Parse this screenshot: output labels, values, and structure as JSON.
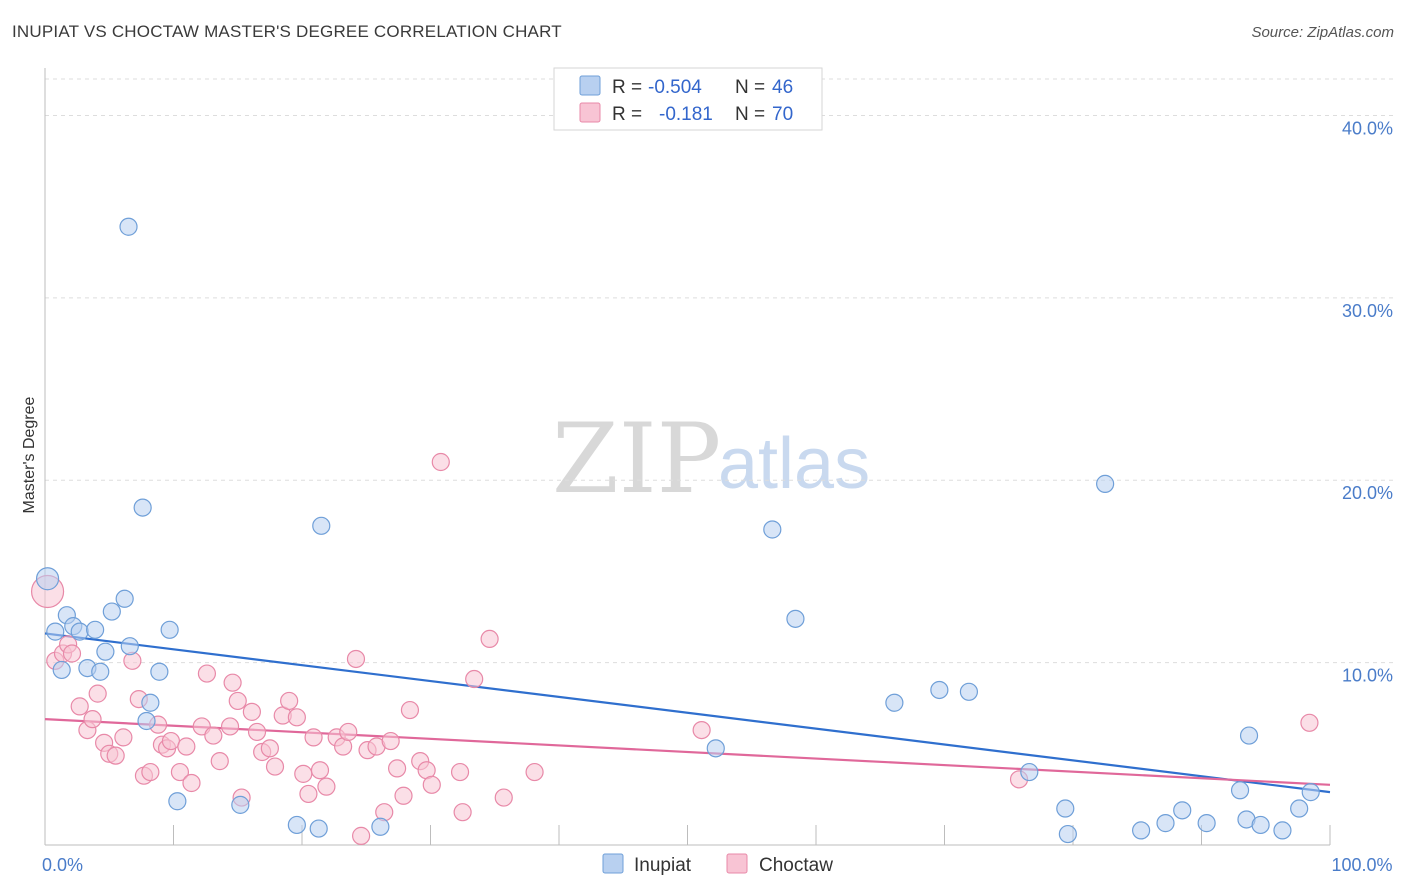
{
  "title": "INUPIAT VS CHOCTAW MASTER'S DEGREE CORRELATION CHART",
  "source": "Source: ZipAtlas.com",
  "watermark": {
    "part1": "ZIP",
    "part2": "atlas"
  },
  "colors": {
    "inupiat_fill": "#b8d0f0",
    "inupiat_stroke": "#6f9fd8",
    "inupiat_line": "#2f6fce",
    "choctaw_fill": "#f8c4d4",
    "choctaw_stroke": "#e889a8",
    "choctaw_line": "#e0689a",
    "grid": "#dddddd",
    "tick_text": "#4a7cc9"
  },
  "legend": {
    "rows": [
      {
        "r_label": "R =",
        "r_value": "-0.504",
        "n_label": "N =",
        "n_value": "46"
      },
      {
        "r_label": "R =",
        "r_value": "-0.181",
        "n_label": "N =",
        "n_value": "70"
      }
    ]
  },
  "chart_data": {
    "type": "scatter",
    "title": "INUPIAT VS CHOCTAW MASTER'S DEGREE CORRELATION CHART",
    "xlabel": "",
    "ylabel": "Master's Degree",
    "xlim": [
      0,
      100
    ],
    "ylim": [
      0,
      42
    ],
    "x_tick_labels": [
      {
        "value": 0,
        "label": "0.0%"
      },
      {
        "value": 100,
        "label": "100.0%"
      }
    ],
    "y_ticks": [
      {
        "value": 10,
        "label": "10.0%"
      },
      {
        "value": 20,
        "label": "20.0%"
      },
      {
        "value": 30,
        "label": "30.0%"
      },
      {
        "value": 40,
        "label": "40.0%"
      }
    ],
    "x_minor_ticks": [
      10,
      20,
      30,
      40,
      50,
      60,
      70,
      80,
      90,
      100
    ],
    "grid": true,
    "series": [
      {
        "name": "Inupiat",
        "trend": {
          "x0": 0,
          "y0": 11.6,
          "x1": 100,
          "y1": 2.9
        },
        "points": [
          [
            0.2,
            14.6
          ],
          [
            0.8,
            11.7
          ],
          [
            1.3,
            9.6
          ],
          [
            1.7,
            12.6
          ],
          [
            2.2,
            12.0
          ],
          [
            2.7,
            11.7
          ],
          [
            3.3,
            9.7
          ],
          [
            3.9,
            11.8
          ],
          [
            4.3,
            9.5
          ],
          [
            4.7,
            10.6
          ],
          [
            5.2,
            12.8
          ],
          [
            6.2,
            13.5
          ],
          [
            6.5,
            33.9
          ],
          [
            6.6,
            10.9
          ],
          [
            7.6,
            18.5
          ],
          [
            7.9,
            6.8
          ],
          [
            8.2,
            7.8
          ],
          [
            8.9,
            9.5
          ],
          [
            9.7,
            11.8
          ],
          [
            10.3,
            2.4
          ],
          [
            15.2,
            2.2
          ],
          [
            19.6,
            1.1
          ],
          [
            21.3,
            0.9
          ],
          [
            21.5,
            17.5
          ],
          [
            26.1,
            1.0
          ],
          [
            52.2,
            5.3
          ],
          [
            56.6,
            17.3
          ],
          [
            58.4,
            12.4
          ],
          [
            66.1,
            7.8
          ],
          [
            69.6,
            8.5
          ],
          [
            71.9,
            8.4
          ],
          [
            76.6,
            4.0
          ],
          [
            79.4,
            2.0
          ],
          [
            79.6,
            0.6
          ],
          [
            82.5,
            19.8
          ],
          [
            85.3,
            0.8
          ],
          [
            87.2,
            1.2
          ],
          [
            88.5,
            1.9
          ],
          [
            90.4,
            1.2
          ],
          [
            93.0,
            3.0
          ],
          [
            93.5,
            1.4
          ],
          [
            93.7,
            6.0
          ],
          [
            94.6,
            1.1
          ],
          [
            96.3,
            0.8
          ],
          [
            97.6,
            2.0
          ],
          [
            98.5,
            2.9
          ]
        ]
      },
      {
        "name": "Choctaw",
        "trend": {
          "x0": 0,
          "y0": 6.9,
          "x1": 100,
          "y1": 3.3
        },
        "points": [
          [
            0.2,
            13.9
          ],
          [
            0.8,
            10.1
          ],
          [
            1.4,
            10.5
          ],
          [
            1.8,
            11.0
          ],
          [
            2.1,
            10.5
          ],
          [
            2.7,
            7.6
          ],
          [
            3.3,
            6.3
          ],
          [
            3.7,
            6.9
          ],
          [
            4.1,
            8.3
          ],
          [
            4.6,
            5.6
          ],
          [
            5.0,
            5.0
          ],
          [
            5.5,
            4.9
          ],
          [
            6.1,
            5.9
          ],
          [
            6.8,
            10.1
          ],
          [
            7.3,
            8.0
          ],
          [
            7.7,
            3.8
          ],
          [
            8.2,
            4.0
          ],
          [
            8.8,
            6.6
          ],
          [
            9.1,
            5.5
          ],
          [
            9.5,
            5.3
          ],
          [
            9.8,
            5.7
          ],
          [
            10.5,
            4.0
          ],
          [
            11.0,
            5.4
          ],
          [
            11.4,
            3.4
          ],
          [
            12.2,
            6.5
          ],
          [
            12.6,
            9.4
          ],
          [
            13.1,
            6.0
          ],
          [
            13.6,
            4.6
          ],
          [
            14.4,
            6.5
          ],
          [
            14.6,
            8.9
          ],
          [
            15.0,
            7.9
          ],
          [
            15.3,
            2.6
          ],
          [
            16.1,
            7.3
          ],
          [
            16.5,
            6.2
          ],
          [
            16.9,
            5.1
          ],
          [
            17.5,
            5.3
          ],
          [
            17.9,
            4.3
          ],
          [
            18.5,
            7.1
          ],
          [
            19.0,
            7.9
          ],
          [
            19.6,
            7.0
          ],
          [
            20.1,
            3.9
          ],
          [
            20.5,
            2.8
          ],
          [
            20.9,
            5.9
          ],
          [
            21.4,
            4.1
          ],
          [
            21.9,
            3.2
          ],
          [
            22.7,
            5.9
          ],
          [
            23.2,
            5.4
          ],
          [
            23.6,
            6.2
          ],
          [
            24.2,
            10.2
          ],
          [
            24.6,
            0.5
          ],
          [
            25.1,
            5.2
          ],
          [
            25.8,
            5.4
          ],
          [
            26.4,
            1.8
          ],
          [
            26.9,
            5.7
          ],
          [
            27.4,
            4.2
          ],
          [
            27.9,
            2.7
          ],
          [
            28.4,
            7.4
          ],
          [
            29.2,
            4.6
          ],
          [
            29.7,
            4.1
          ],
          [
            30.1,
            3.3
          ],
          [
            30.8,
            21.0
          ],
          [
            32.3,
            4.0
          ],
          [
            32.5,
            1.8
          ],
          [
            33.4,
            9.1
          ],
          [
            34.6,
            11.3
          ],
          [
            35.7,
            2.6
          ],
          [
            38.1,
            4.0
          ],
          [
            51.1,
            6.3
          ],
          [
            75.8,
            3.6
          ],
          [
            98.4,
            6.7
          ]
        ]
      }
    ]
  }
}
